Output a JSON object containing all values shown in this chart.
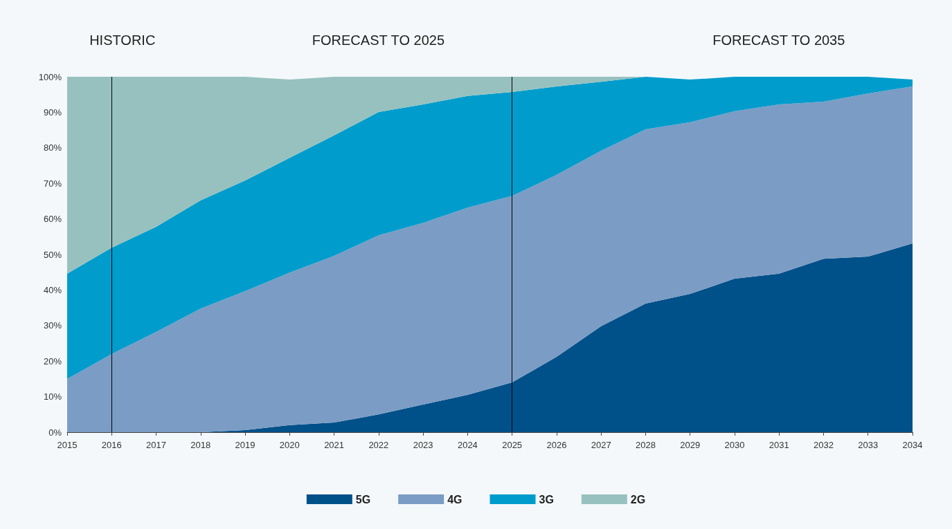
{
  "chart_data": {
    "type": "area",
    "stacked": true,
    "categories": [
      "2015",
      "2016",
      "2017",
      "2018",
      "2019",
      "2020",
      "2021",
      "2022",
      "2023",
      "2024",
      "2025",
      "2026",
      "2027",
      "2028",
      "2029",
      "2030",
      "2031",
      "2032",
      "2033",
      "2034"
    ],
    "series": [
      {
        "name": "5G",
        "color": "#00508a",
        "values": [
          0,
          0,
          0,
          0,
          0.6,
          2,
          2.7,
          5,
          7.8,
          10.5,
          14,
          21.2,
          29.8,
          36.2,
          38.9,
          43.2,
          44.6,
          48.8,
          49.4,
          53.1
        ]
      },
      {
        "name": "4G",
        "color": "#7b9cc4",
        "values": [
          15,
          22,
          28.2,
          34.8,
          39.1,
          42.9,
          46.9,
          50.4,
          51.1,
          52.7,
          52.5,
          51.2,
          49.4,
          49,
          48.3,
          47.1,
          47.6,
          44.2,
          45.9,
          44.2
        ]
      },
      {
        "name": "3G",
        "color": "#009ccc",
        "values": [
          29.6,
          29.9,
          29.6,
          30.4,
          31.1,
          32.3,
          33.9,
          34.7,
          33.3,
          31.4,
          29.2,
          24.9,
          19.4,
          14.8,
          12,
          9.7,
          7.8,
          7,
          4.7,
          1.9
        ]
      },
      {
        "name": "2G",
        "color": "#97c1be",
        "values": [
          55.4,
          48.1,
          42.2,
          34.8,
          29.2,
          22,
          16.5,
          9.9,
          7.8,
          5.4,
          4.3,
          2.7,
          1.4,
          0,
          0,
          0,
          0,
          0,
          0,
          0
        ]
      }
    ],
    "ylim": [
      0,
      100
    ],
    "yticks": [
      {
        "value": 0,
        "label": "0%"
      },
      {
        "value": 10,
        "label": "10%"
      },
      {
        "value": 20,
        "label": "20%"
      },
      {
        "value": 30,
        "label": "30%"
      },
      {
        "value": 40,
        "label": "40%"
      },
      {
        "value": 50,
        "label": "50%"
      },
      {
        "value": 60,
        "label": "60%"
      },
      {
        "value": 70,
        "label": "70%"
      },
      {
        "value": 80,
        "label": "80%"
      },
      {
        "value": 90,
        "label": "90%"
      },
      {
        "value": 100,
        "label": "100%"
      }
    ],
    "ref_lines": [
      {
        "axis": "x",
        "value": "2016",
        "color": "#000000"
      },
      {
        "axis": "x",
        "value": "2025",
        "color": "#000000"
      }
    ],
    "annotations": [
      "HISTORIC",
      "FORECAST TO 2025",
      "FORECAST TO 2035"
    ],
    "grid": false,
    "legend": "bottom"
  }
}
